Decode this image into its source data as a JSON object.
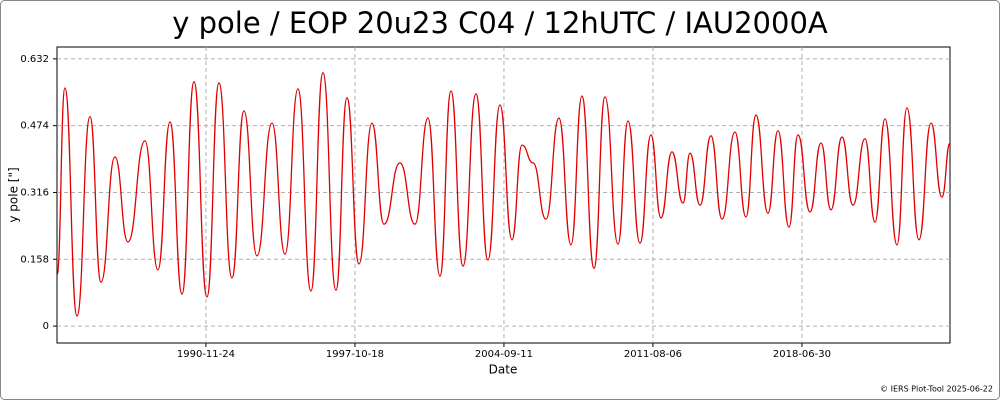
{
  "chart_data": {
    "type": "line",
    "title": "y pole / EOP 20u23 C04 / 12hUTC / IAU2000A",
    "x_label": "Date",
    "y_label": "y pole [\"]",
    "footer": "© IERS Plot-Tool 2025-06-22",
    "grid": true,
    "xlim": [
      "1984-01-01",
      "2025-05-08"
    ],
    "xticks": [
      "1990-11-24",
      "1997-10-18",
      "2004-09-11",
      "2011-08-06",
      "2018-06-30"
    ],
    "ylim": [
      -0.04,
      0.66
    ],
    "yticks": [
      0,
      0.158,
      0.316,
      0.474,
      0.632
    ],
    "x": [
      "1984-01-01",
      "1984-05-14",
      "1984-12-04",
      "1985-07-12",
      "1986-01-14",
      "1986-09-07",
      "1987-04-15",
      "1988-01-27",
      "1988-09-03",
      "1989-03-26",
      "1989-10-15",
      "1990-05-06",
      "1990-12-11",
      "1991-07-02",
      "1992-02-07",
      "1992-08-28",
      "1993-04-05",
      "1993-12-15",
      "1994-07-23",
      "1995-02-27",
      "1995-10-05",
      "1996-04-25",
      "1996-12-01",
      "1997-06-05",
      "1997-12-25",
      "1998-08-02",
      "1999-02-21",
      "1999-11-18",
      "2000-07-29",
      "2001-03-06",
      "2001-09-25",
      "2002-03-30",
      "2002-10-19",
      "2003-05-27",
      "2003-12-15",
      "2004-07-06",
      "2005-01-25",
      "2005-07-13",
      "2006-01-15",
      "2006-08-23",
      "2007-03-30",
      "2007-10-20",
      "2008-04-22",
      "2008-11-12",
      "2009-05-17",
      "2009-12-23",
      "2010-06-10",
      "2010-12-30",
      "2011-07-03",
      "2011-12-19",
      "2012-06-23",
      "2012-12-26",
      "2013-04-24",
      "2013-10-10",
      "2014-04-13",
      "2014-10-17",
      "2015-05-24",
      "2015-11-26",
      "2016-05-13",
      "2016-12-02",
      "2017-05-21",
      "2017-11-23",
      "2018-04-24",
      "2018-11-13",
      "2019-05-18",
      "2019-11-03",
      "2020-05-07",
      "2020-11-09",
      "2021-05-31",
      "2021-11-16",
      "2022-05-05",
      "2022-11-23",
      "2023-05-11",
      "2023-11-30",
      "2024-06-20",
      "2024-12-23",
      "2025-05-08"
    ],
    "series": [
      {
        "name": "y pole",
        "color": "#e00000",
        "values": [
          0.12,
          0.563,
          0.024,
          0.495,
          0.104,
          0.4,
          0.199,
          0.438,
          0.133,
          0.483,
          0.076,
          0.578,
          0.069,
          0.575,
          0.114,
          0.509,
          0.166,
          0.48,
          0.17,
          0.561,
          0.083,
          0.599,
          0.085,
          0.54,
          0.147,
          0.48,
          0.241,
          0.386,
          0.241,
          0.492,
          0.118,
          0.556,
          0.142,
          0.549,
          0.156,
          0.523,
          0.204,
          0.428,
          0.386,
          0.253,
          0.492,
          0.192,
          0.544,
          0.137,
          0.542,
          0.194,
          0.485,
          0.196,
          0.452,
          0.256,
          0.412,
          0.291,
          0.409,
          0.286,
          0.45,
          0.253,
          0.459,
          0.258,
          0.499,
          0.267,
          0.462,
          0.234,
          0.452,
          0.27,
          0.433,
          0.275,
          0.447,
          0.286,
          0.443,
          0.246,
          0.49,
          0.192,
          0.516,
          0.204,
          0.48,
          0.305,
          0.433
        ]
      }
    ]
  }
}
